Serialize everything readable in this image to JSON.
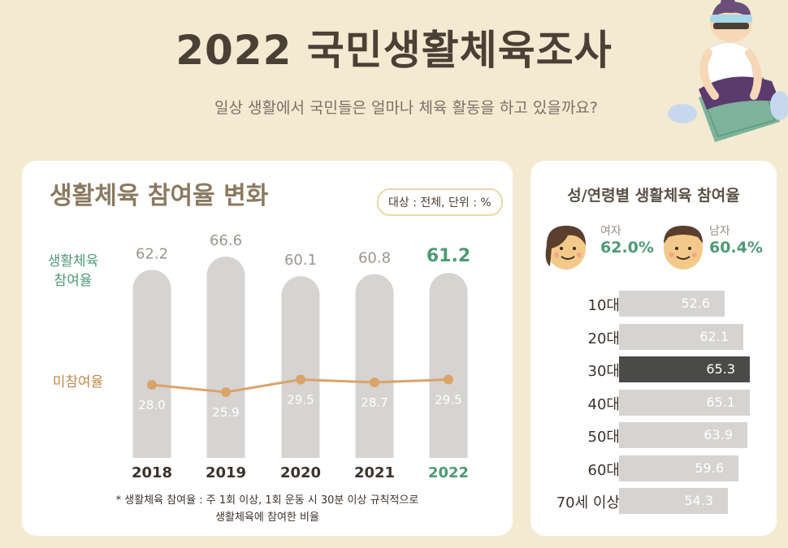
{
  "header": {
    "title": "2022 국민생활체육조사",
    "subtitle": "일상 생활에서 국민들은 얼마나 체육 활동을 하고 있을까요?"
  },
  "left_panel": {
    "title": "생활체육 참여율 변화",
    "unit_badge": "대상 : 전체, 단위 : %",
    "legend_participation": "생활체육\n참여율",
    "legend_nonparticipation": "미참여율",
    "footnote_line1": "* 생활체육 참여율 : 주 1회 이상, 1회 운동 시 30분 이상 규칙적으로",
    "footnote_line2": "생활체육에 참여한 비율"
  },
  "right_panel": {
    "title": "성/연령별 생활체육 참여율",
    "female": {
      "label": "여자",
      "value": "62.0%"
    },
    "male": {
      "label": "남자",
      "value": "60.4%"
    }
  },
  "colors": {
    "background": "#f4ead1",
    "bar": "#d6d4d2",
    "line": "#d9a46a",
    "highlight_green": "#4e9a74",
    "highlight_dark": "#4a4a48"
  },
  "chart_data": [
    {
      "type": "bar",
      "categories": [
        "2018",
        "2019",
        "2020",
        "2021",
        "2022"
      ],
      "series": [
        {
          "name": "생활체육 참여율",
          "values": [
            62.2,
            66.6,
            60.1,
            60.8,
            61.2
          ]
        },
        {
          "name": "미참여율",
          "type": "line",
          "values": [
            28.0,
            25.9,
            29.5,
            28.7,
            29.5
          ]
        }
      ],
      "title": "생활체육 참여율 변화",
      "highlight_category": "2022"
    },
    {
      "type": "bar",
      "orientation": "horizontal",
      "categories": [
        "10대",
        "20대",
        "30대",
        "40대",
        "50대",
        "60대",
        "70세 이상"
      ],
      "values": [
        52.6,
        62.1,
        65.3,
        65.1,
        63.9,
        59.6,
        54.3
      ],
      "title": "성/연령별 생활체육 참여율",
      "highlight_category": "30대"
    }
  ]
}
